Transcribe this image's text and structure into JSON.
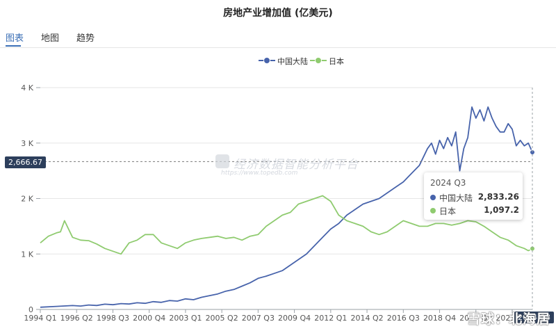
{
  "title": "房地产业增加值 (亿美元)",
  "tabs": [
    {
      "label": "图表"
    },
    {
      "label": "地图"
    },
    {
      "label": "趋势"
    }
  ],
  "watermark": {
    "main": "经济数据智能分析平台",
    "sub": "https://www.topedb.com"
  },
  "corner_watermark": "雪球：北海居",
  "reference_label": "2,666.67",
  "axis_pointer_label": "2024 Q3",
  "tooltip": {
    "title": "2024 Q3",
    "rows": [
      {
        "name": "中国大陆",
        "value": "2,833.26"
      },
      {
        "name": "日本",
        "value": "1,097.2"
      }
    ]
  },
  "colors": {
    "china": "#4763ab",
    "japan": "#8fcb6f",
    "accent": "#3b6fb6"
  },
  "chart_data": {
    "type": "line",
    "title": "房地产业增加值 (亿美元)",
    "x_range": [
      "1994 Q1",
      "2024 Q3"
    ],
    "x_tick_labels": [
      "1994 Q1",
      "1996 Q2",
      "1998 Q3",
      "2000 Q4",
      "2003 Q1",
      "2005 Q2",
      "2007 Q3",
      "2009 Q4",
      "2012 Q1",
      "2014 Q2",
      "2016 Q3",
      "2018 Q4",
      "2021 Q1",
      "2023 Q2"
    ],
    "y_ticks": [
      0,
      1000,
      2000,
      3000,
      4000
    ],
    "y_tick_labels": [
      "0",
      "1 K",
      "2 K",
      "3 K",
      "4 K"
    ],
    "ylim": [
      0,
      4000
    ],
    "reference_value": 2666.67,
    "grid": true,
    "legend_position": "top-center",
    "series": [
      {
        "name": "中国大陆",
        "color": "#4763ab",
        "points": [
          [
            1994.0,
            40
          ],
          [
            1995.0,
            55
          ],
          [
            1996.0,
            70
          ],
          [
            1996.5,
            62
          ],
          [
            1997.0,
            80
          ],
          [
            1997.5,
            72
          ],
          [
            1998.0,
            95
          ],
          [
            1998.5,
            85
          ],
          [
            1999.0,
            105
          ],
          [
            1999.5,
            98
          ],
          [
            2000.0,
            120
          ],
          [
            2000.5,
            110
          ],
          [
            2001.0,
            140
          ],
          [
            2001.5,
            128
          ],
          [
            2002.0,
            160
          ],
          [
            2002.5,
            150
          ],
          [
            2003.0,
            190
          ],
          [
            2003.5,
            175
          ],
          [
            2004.0,
            220
          ],
          [
            2004.5,
            250
          ],
          [
            2005.0,
            280
          ],
          [
            2005.5,
            330
          ],
          [
            2006.0,
            360
          ],
          [
            2006.5,
            420
          ],
          [
            2007.0,
            480
          ],
          [
            2007.5,
            560
          ],
          [
            2008.0,
            600
          ],
          [
            2008.5,
            650
          ],
          [
            2009.0,
            700
          ],
          [
            2009.5,
            800
          ],
          [
            2010.0,
            900
          ],
          [
            2010.5,
            1000
          ],
          [
            2011.0,
            1150
          ],
          [
            2011.5,
            1300
          ],
          [
            2012.0,
            1450
          ],
          [
            2012.5,
            1550
          ],
          [
            2013.0,
            1700
          ],
          [
            2013.5,
            1800
          ],
          [
            2014.0,
            1900
          ],
          [
            2014.5,
            1950
          ],
          [
            2015.0,
            2000
          ],
          [
            2015.5,
            2100
          ],
          [
            2016.0,
            2200
          ],
          [
            2016.5,
            2300
          ],
          [
            2017.0,
            2450
          ],
          [
            2017.5,
            2600
          ],
          [
            2018.0,
            2900
          ],
          [
            2018.25,
            3000
          ],
          [
            2018.5,
            2800
          ],
          [
            2018.75,
            3050
          ],
          [
            2019.0,
            2900
          ],
          [
            2019.25,
            3100
          ],
          [
            2019.5,
            2950
          ],
          [
            2019.75,
            3200
          ],
          [
            2020.0,
            2500
          ],
          [
            2020.25,
            2900
          ],
          [
            2020.5,
            3100
          ],
          [
            2020.75,
            3650
          ],
          [
            2021.0,
            3450
          ],
          [
            2021.25,
            3600
          ],
          [
            2021.5,
            3400
          ],
          [
            2021.75,
            3650
          ],
          [
            2022.0,
            3450
          ],
          [
            2022.25,
            3300
          ],
          [
            2022.5,
            3200
          ],
          [
            2022.75,
            3200
          ],
          [
            2023.0,
            3350
          ],
          [
            2023.25,
            3250
          ],
          [
            2023.5,
            2950
          ],
          [
            2023.75,
            3050
          ],
          [
            2024.0,
            2950
          ],
          [
            2024.25,
            3000
          ],
          [
            2024.5,
            2833.26
          ]
        ]
      },
      {
        "name": "日本",
        "color": "#8fcb6f",
        "points": [
          [
            1994.0,
            1200
          ],
          [
            1994.5,
            1320
          ],
          [
            1995.0,
            1380
          ],
          [
            1995.25,
            1400
          ],
          [
            1995.5,
            1600
          ],
          [
            1996.0,
            1300
          ],
          [
            1996.5,
            1250
          ],
          [
            1997.0,
            1240
          ],
          [
            1997.5,
            1180
          ],
          [
            1998.0,
            1100
          ],
          [
            1998.5,
            1050
          ],
          [
            1999.0,
            1000
          ],
          [
            1999.5,
            1200
          ],
          [
            2000.0,
            1250
          ],
          [
            2000.5,
            1350
          ],
          [
            2001.0,
            1350
          ],
          [
            2001.5,
            1200
          ],
          [
            2002.0,
            1150
          ],
          [
            2002.5,
            1100
          ],
          [
            2003.0,
            1200
          ],
          [
            2003.5,
            1250
          ],
          [
            2004.0,
            1280
          ],
          [
            2004.5,
            1300
          ],
          [
            2005.0,
            1320
          ],
          [
            2005.5,
            1280
          ],
          [
            2006.0,
            1300
          ],
          [
            2006.5,
            1250
          ],
          [
            2007.0,
            1320
          ],
          [
            2007.5,
            1350
          ],
          [
            2008.0,
            1500
          ],
          [
            2008.5,
            1600
          ],
          [
            2009.0,
            1700
          ],
          [
            2009.5,
            1750
          ],
          [
            2010.0,
            1900
          ],
          [
            2010.5,
            1950
          ],
          [
            2011.0,
            2000
          ],
          [
            2011.5,
            2050
          ],
          [
            2012.0,
            1950
          ],
          [
            2012.5,
            1700
          ],
          [
            2013.0,
            1600
          ],
          [
            2013.5,
            1550
          ],
          [
            2014.0,
            1500
          ],
          [
            2014.5,
            1400
          ],
          [
            2015.0,
            1350
          ],
          [
            2015.5,
            1400
          ],
          [
            2016.0,
            1500
          ],
          [
            2016.5,
            1600
          ],
          [
            2017.0,
            1550
          ],
          [
            2017.5,
            1500
          ],
          [
            2018.0,
            1500
          ],
          [
            2018.5,
            1550
          ],
          [
            2019.0,
            1550
          ],
          [
            2019.5,
            1520
          ],
          [
            2020.0,
            1550
          ],
          [
            2020.5,
            1600
          ],
          [
            2021.0,
            1580
          ],
          [
            2021.5,
            1500
          ],
          [
            2022.0,
            1400
          ],
          [
            2022.5,
            1300
          ],
          [
            2023.0,
            1250
          ],
          [
            2023.5,
            1150
          ],
          [
            2024.0,
            1100
          ],
          [
            2024.25,
            1060
          ],
          [
            2024.5,
            1097.2
          ]
        ]
      }
    ]
  }
}
